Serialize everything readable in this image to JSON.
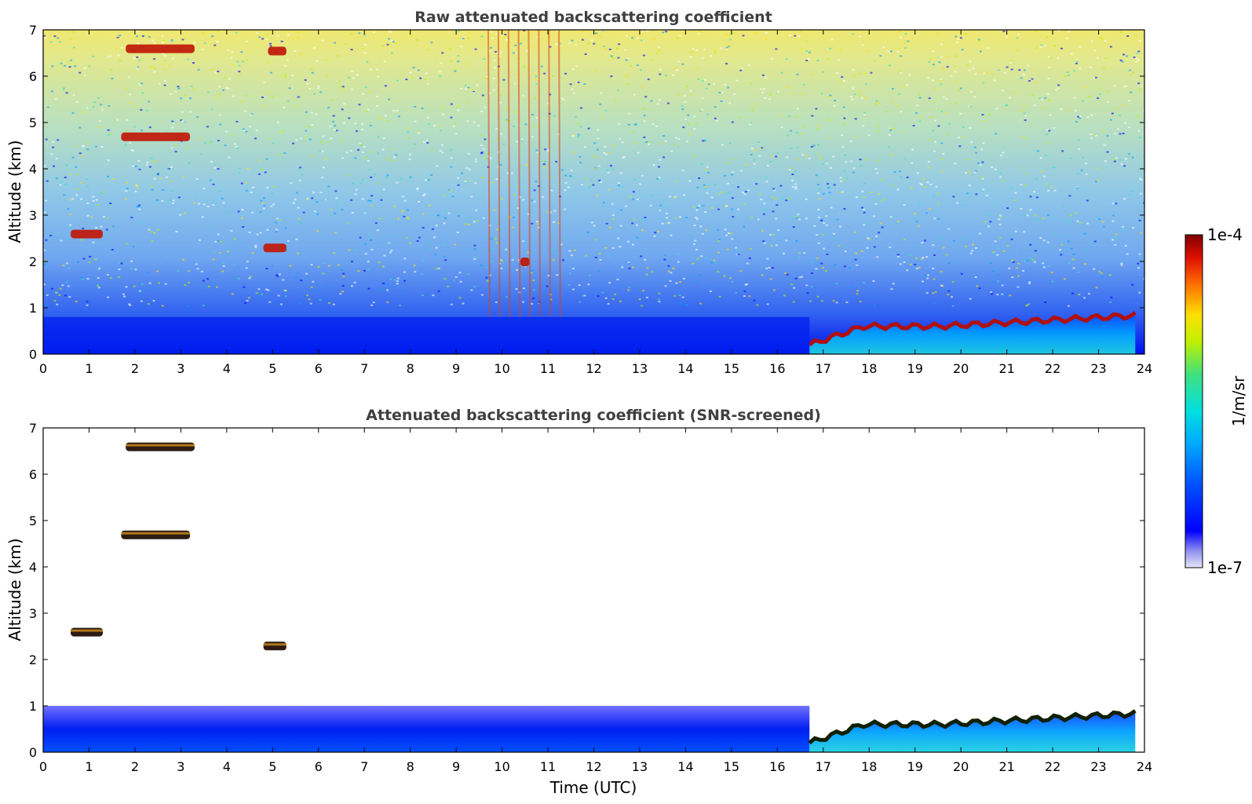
{
  "figure": {
    "xlabel": "Time (UTC)",
    "colorbar": {
      "label": "1/m/sr",
      "max_label": "1e-4",
      "min_label": "1e-7",
      "scale": "log",
      "range": [
        1e-07,
        0.0001
      ]
    }
  },
  "chart_data": [
    {
      "type": "heatmap",
      "title": "Raw attenuated backscattering coefficient",
      "xlabel": "",
      "ylabel": "Altitude (km)",
      "xlim": [
        0,
        24
      ],
      "ylim": [
        0,
        7
      ],
      "xticks": [
        0,
        1,
        2,
        3,
        4,
        5,
        6,
        7,
        8,
        9,
        10,
        11,
        12,
        13,
        14,
        15,
        16,
        17,
        18,
        19,
        20,
        21,
        22,
        23,
        24
      ],
      "yticks": [
        0,
        1,
        2,
        3,
        4,
        5,
        6,
        7
      ],
      "grid": false,
      "colormap": "jet",
      "features": [
        {
          "kind": "cloud",
          "t": [
            1.8,
            3.3
          ],
          "alt": 6.6
        },
        {
          "kind": "cloud",
          "t": [
            4.9,
            5.3
          ],
          "alt": 6.55
        },
        {
          "kind": "cloud",
          "t": [
            1.7,
            3.2
          ],
          "alt": 4.7
        },
        {
          "kind": "cloud",
          "t": [
            0.6,
            1.3
          ],
          "alt": 2.6
        },
        {
          "kind": "cloud",
          "t": [
            4.8,
            5.3
          ],
          "alt": 2.3
        },
        {
          "kind": "cloud",
          "t": [
            10.4,
            10.6
          ],
          "alt": 2.0
        },
        {
          "kind": "boundary-layer-top",
          "t": [
            16.7,
            23.8
          ],
          "alt": [
            0.2,
            0.9
          ]
        },
        {
          "kind": "rain-streaks",
          "t": [
            9.7,
            11.3
          ],
          "alt": [
            0,
            7
          ]
        }
      ]
    },
    {
      "type": "heatmap",
      "title": "Attenuated backscattering coefficient (SNR-screened)",
      "xlabel": "Time (UTC)",
      "ylabel": "Altitude (km)",
      "xlim": [
        0,
        24
      ],
      "ylim": [
        0,
        7
      ],
      "xticks": [
        0,
        1,
        2,
        3,
        4,
        5,
        6,
        7,
        8,
        9,
        10,
        11,
        12,
        13,
        14,
        15,
        16,
        17,
        18,
        19,
        20,
        21,
        22,
        23,
        24
      ],
      "yticks": [
        0,
        1,
        2,
        3,
        4,
        5,
        6,
        7
      ],
      "grid": false,
      "colormap": "jet",
      "features": [
        {
          "kind": "cloud",
          "t": [
            1.8,
            3.3
          ],
          "alt": 6.6
        },
        {
          "kind": "cloud",
          "t": [
            1.7,
            3.2
          ],
          "alt": 4.7
        },
        {
          "kind": "cloud",
          "t": [
            0.6,
            1.3
          ],
          "alt": 2.6
        },
        {
          "kind": "cloud",
          "t": [
            4.8,
            5.3
          ],
          "alt": 2.3
        },
        {
          "kind": "boundary-layer",
          "t": [
            0,
            24
          ],
          "alt": [
            0,
            1.0
          ]
        },
        {
          "kind": "boundary-layer-top",
          "t": [
            16.7,
            23.8
          ],
          "alt": [
            0.2,
            0.9
          ]
        }
      ]
    }
  ]
}
